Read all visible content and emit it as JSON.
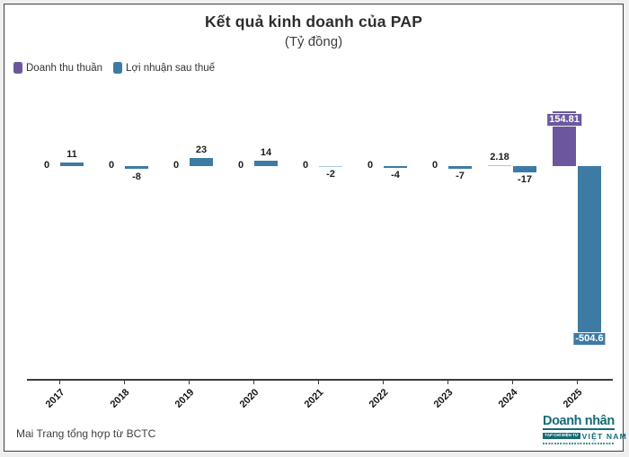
{
  "title": "Kết quả kinh doanh của PAP",
  "subtitle": "(Tỷ đồng)",
  "legend": [
    {
      "label": "Doanh thu thuần",
      "color": "#6b589c"
    },
    {
      "label": "Lợi nhuận sau thuế",
      "color": "#3d7ba4"
    }
  ],
  "chart_data": {
    "type": "bar",
    "categories": [
      "2017",
      "2018",
      "2019",
      "2020",
      "2021",
      "2022",
      "2023",
      "2024",
      "2025"
    ],
    "series": [
      {
        "name": "Doanh thu thuần",
        "color": "#6b589c",
        "light_color": "#c7b9da",
        "values": [
          0,
          0,
          0,
          0,
          0,
          0,
          0,
          2.18,
          154.81
        ],
        "labels": [
          "0",
          "0",
          "0",
          "0",
          "0",
          "0",
          "0",
          "2.18",
          "154.81"
        ]
      },
      {
        "name": "Lợi nhuận sau thuế",
        "color": "#3d7ba4",
        "light_color": "#aec9dc",
        "values": [
          11,
          -8,
          23,
          14,
          -2,
          -4,
          -7,
          -17,
          -504.6
        ],
        "labels": [
          "11",
          "-8",
          "23",
          "14",
          "-2",
          "-4",
          "-7",
          "-17",
          "-504.6"
        ]
      }
    ],
    "title": "Kết quả kinh doanh của PAP",
    "subtitle": "(Tỷ đồng)",
    "xlabel": "",
    "ylabel": "",
    "ylim": [
      -520,
      170
    ],
    "grid": false,
    "legend_position": "top-left"
  },
  "footer": {
    "source": "Mai Trang tổng hợp từ BCTC"
  },
  "logo": {
    "line1": "Doanh nhân",
    "badge": "TẠP CHÍ ĐIỆN TỬ",
    "line2": "VIỆT NAM",
    "color": "#156a78"
  }
}
